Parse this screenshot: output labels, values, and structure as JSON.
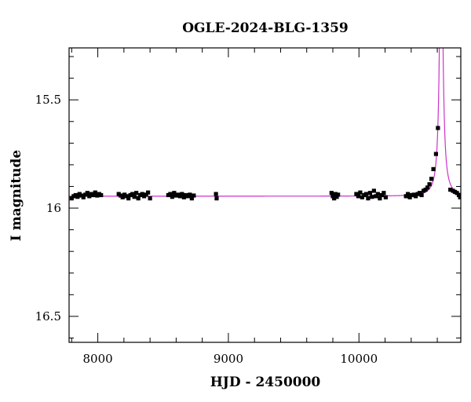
{
  "chart_data": {
    "type": "scatter",
    "title": "OGLE-2024-BLG-1359",
    "xlabel": "HJD - 2450000",
    "ylabel": "I magnitude",
    "xlim": [
      7780,
      10780
    ],
    "ylim": [
      16.62,
      15.26
    ],
    "y_inverted": true,
    "grid": false,
    "x_major_ticks": [
      8000,
      9000,
      10000
    ],
    "x_tick_labels": [
      "8000",
      "9000",
      "10000"
    ],
    "y_major_ticks": [
      15.5,
      16,
      16.5
    ],
    "y_tick_labels": [
      "15.5",
      "16",
      "16.5"
    ],
    "baseline_magnitude": 15.945,
    "colors": {
      "data": "#000000",
      "model": "#cc33cc",
      "axes": "#000000"
    },
    "series": [
      {
        "kind": "points",
        "points": [
          [
            7800,
            15.955
          ],
          [
            7815,
            15.945
          ],
          [
            7830,
            15.94
          ],
          [
            7845,
            15.948
          ],
          [
            7860,
            15.935
          ],
          [
            7875,
            15.942
          ],
          [
            7890,
            15.95
          ],
          [
            7905,
            15.938
          ],
          [
            7920,
            15.93
          ],
          [
            7935,
            15.945
          ],
          [
            7950,
            15.935
          ],
          [
            7965,
            15.94
          ],
          [
            7980,
            15.928
          ],
          [
            7995,
            15.942
          ],
          [
            8010,
            15.935
          ],
          [
            8025,
            15.94
          ],
          [
            8160,
            15.935
          ],
          [
            8175,
            15.942
          ],
          [
            8190,
            15.95
          ],
          [
            8205,
            15.938
          ],
          [
            8220,
            15.945
          ],
          [
            8235,
            15.955
          ],
          [
            8250,
            15.94
          ],
          [
            8265,
            15.935
          ],
          [
            8280,
            15.948
          ],
          [
            8295,
            15.93
          ],
          [
            8310,
            15.955
          ],
          [
            8325,
            15.94
          ],
          [
            8340,
            15.935
          ],
          [
            8355,
            15.945
          ],
          [
            8370,
            15.938
          ],
          [
            8385,
            15.928
          ],
          [
            8400,
            15.955
          ],
          [
            8540,
            15.94
          ],
          [
            8555,
            15.935
          ],
          [
            8570,
            15.948
          ],
          [
            8585,
            15.93
          ],
          [
            8600,
            15.942
          ],
          [
            8615,
            15.938
          ],
          [
            8630,
            15.945
          ],
          [
            8645,
            15.935
          ],
          [
            8660,
            15.95
          ],
          [
            8675,
            15.94
          ],
          [
            8690,
            15.945
          ],
          [
            8705,
            15.938
          ],
          [
            8720,
            15.955
          ],
          [
            8735,
            15.942
          ],
          [
            8905,
            15.935
          ],
          [
            8910,
            15.955
          ],
          [
            9790,
            15.93
          ],
          [
            9800,
            15.945
          ],
          [
            9810,
            15.955
          ],
          [
            9820,
            15.935
          ],
          [
            9830,
            15.948
          ],
          [
            9840,
            15.938
          ],
          [
            9980,
            15.935
          ],
          [
            9995,
            15.945
          ],
          [
            10010,
            15.928
          ],
          [
            10025,
            15.95
          ],
          [
            10040,
            15.94
          ],
          [
            10055,
            15.935
          ],
          [
            10070,
            15.955
          ],
          [
            10085,
            15.93
          ],
          [
            10100,
            15.948
          ],
          [
            10115,
            15.92
          ],
          [
            10130,
            15.945
          ],
          [
            10145,
            15.935
          ],
          [
            10160,
            15.955
          ],
          [
            10175,
            15.94
          ],
          [
            10190,
            15.93
          ],
          [
            10205,
            15.95
          ],
          [
            10360,
            15.945
          ],
          [
            10375,
            15.935
          ],
          [
            10390,
            15.95
          ],
          [
            10405,
            15.94
          ],
          [
            10420,
            15.938
          ],
          [
            10435,
            15.945
          ],
          [
            10450,
            15.935
          ],
          [
            10465,
            15.93
          ],
          [
            10480,
            15.94
          ],
          [
            10495,
            15.92
          ],
          [
            10510,
            15.915
          ],
          [
            10525,
            15.905
          ],
          [
            10540,
            15.89
          ],
          [
            10555,
            15.865
          ],
          [
            10570,
            15.82
          ],
          [
            10590,
            15.75
          ],
          [
            10605,
            15.63
          ],
          [
            10700,
            15.915
          ],
          [
            10720,
            15.92
          ],
          [
            10735,
            15.925
          ],
          [
            10750,
            15.93
          ],
          [
            10765,
            15.94
          ],
          [
            10775,
            15.95
          ]
        ]
      },
      {
        "kind": "model-curve",
        "model": {
          "baseline": 15.945,
          "peak_time": 10630,
          "amplitude": 1.6,
          "width": 16
        }
      }
    ]
  }
}
